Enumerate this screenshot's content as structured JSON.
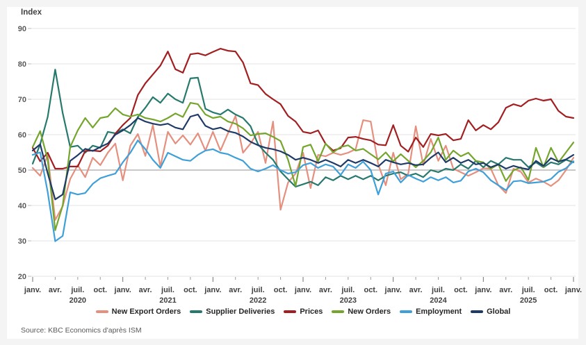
{
  "page": {
    "background": "#f4f4f4",
    "card_background": "#ffffff"
  },
  "header": {
    "axis_title": "Index"
  },
  "footer": {
    "source": "Source: KBC Economics d'après ISM"
  },
  "chart_data": {
    "type": "line",
    "title": "",
    "ylabel": "Index",
    "xlabel": "",
    "ylim": [
      20,
      90
    ],
    "yticks": [
      90,
      80,
      70,
      60,
      50,
      40,
      30,
      20
    ],
    "reference_line": 50,
    "grid": true,
    "grid_color": "#e3e3e3",
    "reference_line_color": "#a8a8a8",
    "x_start": "janv. 2020",
    "x_end": "janv. 2026",
    "points_per_series": 73,
    "quarter_tick_labels": [
      "janv.",
      "avr.",
      "juil.",
      "oct.",
      "janv.",
      "avr.",
      "juil.",
      "oct.",
      "janv.",
      "avr.",
      "juil.",
      "oct.",
      "janv.",
      "avr.",
      "juil.",
      "oct.",
      "janv.",
      "avr.",
      "juil.",
      "oct.",
      "janv.",
      "avr.",
      "juil.",
      "oct.",
      "janv."
    ],
    "year_labels": [
      {
        "label": "2020",
        "month_index": 6
      },
      {
        "label": "2021",
        "month_index": 18
      },
      {
        "label": "2022",
        "month_index": 30
      },
      {
        "label": "2023",
        "month_index": 42
      },
      {
        "label": "2024",
        "month_index": 54
      },
      {
        "label": "2025",
        "month_index": 66
      }
    ],
    "legend_position": "bottom",
    "series": [
      {
        "name": "New Export Orders",
        "color": "#E58F7E",
        "values": [
          50.6,
          48.4,
          54.3,
          35.9,
          39.8,
          47.5,
          51.4,
          48.0,
          53.5,
          51.4,
          54.9,
          57.5,
          47.1,
          56.9,
          60.2,
          54.0,
          62.7,
          51.0,
          60.8,
          57.5,
          59.8,
          57.2,
          60.4,
          55.5,
          60.8,
          55.5,
          60.4,
          65.3,
          54.9,
          57.5,
          60.8,
          52.0,
          63.7,
          38.8,
          46.5,
          49.0,
          54.9,
          44.9,
          54.3,
          53.9,
          54.9,
          54.3,
          54.9,
          55.9,
          64.1,
          63.7,
          51.6,
          45.7,
          54.9,
          47.4,
          49.0,
          62.4,
          51.4,
          58.8,
          52.6,
          56.9,
          50.4,
          49.4,
          48.4,
          49.4,
          50.5,
          50.4,
          45.7,
          43.5,
          50.4,
          49.5,
          46.5,
          47.6,
          46.7,
          45.5,
          47.1,
          50.0,
          53.5
        ]
      },
      {
        "name": "Supplier Deliveries",
        "color": "#27796D",
        "values": [
          51.8,
          57.3,
          65.0,
          78.4,
          66.1,
          56.5,
          56.9,
          54.9,
          56.9,
          56.3,
          60.8,
          60.4,
          61.5,
          60.4,
          65.0,
          67.6,
          70.6,
          69.0,
          71.6,
          70.0,
          69.0,
          75.9,
          76.1,
          67.3,
          66.3,
          65.7,
          67.1,
          65.7,
          64.7,
          62.4,
          57.3,
          54.9,
          52.9,
          49.6,
          47.4,
          45.3,
          46.0,
          46.7,
          45.7,
          48.0,
          47.1,
          48.4,
          47.4,
          48.4,
          47.4,
          48.4,
          47.1,
          48.4,
          49.0,
          49.4,
          48.4,
          49.0,
          48.0,
          50.0,
          49.4,
          50.4,
          50.0,
          51.6,
          50.4,
          52.6,
          50.8,
          52.6,
          51.6,
          53.5,
          52.9,
          52.9,
          50.8,
          52.2,
          50.8,
          52.2,
          51.6,
          52.9,
          52.2
        ]
      },
      {
        "name": "Prices",
        "color": "#A11E21",
        "values": [
          56.3,
          52.5,
          54.9,
          50.4,
          50.4,
          51.0,
          51.0,
          55.4,
          55.5,
          55.3,
          56.9,
          60.3,
          62.7,
          64.7,
          71.2,
          74.5,
          77.0,
          79.5,
          83.5,
          78.5,
          77.5,
          82.7,
          83.0,
          82.4,
          83.4,
          84.3,
          83.7,
          83.5,
          80.4,
          74.5,
          74.0,
          71.5,
          70.0,
          68.6,
          65.3,
          63.7,
          60.8,
          60.4,
          61.2,
          57.4,
          55.5,
          56.2,
          59.2,
          59.4,
          58.8,
          58.4,
          57.2,
          57.0,
          62.7,
          56.9,
          55.2,
          59.2,
          56.5,
          60.2,
          59.8,
          60.2,
          58.4,
          58.8,
          64.1,
          61.2,
          62.7,
          61.5,
          63.5,
          67.6,
          68.6,
          68.0,
          69.6,
          70.2,
          69.6,
          70.0,
          66.7,
          65.1,
          64.7
        ]
      },
      {
        "name": "New Orders",
        "color": "#74A52D",
        "values": [
          56.5,
          61.0,
          53.0,
          33.0,
          40.0,
          56.5,
          61.2,
          64.7,
          62.0,
          64.7,
          65.1,
          67.5,
          65.7,
          65.1,
          65.7,
          64.7,
          64.3,
          63.7,
          64.7,
          66.0,
          65.0,
          69.0,
          68.6,
          65.7,
          64.7,
          65.1,
          63.7,
          63.1,
          61.8,
          59.8,
          60.2,
          60.4,
          59.4,
          58.2,
          52.9,
          45.5,
          56.5,
          57.2,
          52.5,
          57.5,
          55.0,
          56.5,
          57.0,
          55.5,
          56.0,
          54.5,
          53.0,
          55.0,
          52.5,
          54.5,
          52.6,
          50.8,
          52.6,
          55.0,
          59.2,
          52.9,
          55.5,
          53.9,
          54.9,
          52.6,
          52.2,
          50.4,
          51.6,
          46.9,
          49.9,
          50.8,
          47.2,
          56.3,
          50.8,
          56.3,
          52.2,
          55.0,
          57.8
        ]
      },
      {
        "name": "Employment",
        "color": "#3F9FD8",
        "values": [
          54.3,
          55.0,
          43.8,
          29.9,
          31.4,
          43.7,
          43.1,
          43.5,
          46.1,
          47.7,
          48.4,
          49.0,
          52.2,
          54.9,
          58.4,
          55.9,
          52.9,
          50.6,
          54.9,
          53.9,
          52.9,
          52.6,
          54.3,
          55.5,
          55.9,
          54.9,
          54.5,
          53.5,
          52.6,
          50.4,
          49.6,
          50.4,
          51.4,
          50.0,
          49.0,
          49.4,
          51.4,
          52.0,
          50.6,
          51.6,
          51.0,
          48.6,
          51.6,
          50.6,
          52.4,
          50.0,
          43.1,
          49.0,
          49.6,
          46.5,
          48.6,
          47.6,
          46.7,
          48.0,
          47.1,
          48.0,
          46.5,
          47.0,
          49.6,
          50.4,
          49.4,
          47.1,
          45.7,
          44.3,
          46.8,
          47.0,
          46.3,
          46.5,
          46.7,
          47.5,
          49.5,
          50.5,
          52.5
        ]
      },
      {
        "name": "Global",
        "color": "#1E3A66",
        "values": [
          55.5,
          57.3,
          49.1,
          41.7,
          43.1,
          52.6,
          54.2,
          56.0,
          55.4,
          56.5,
          57.5,
          60.0,
          61.2,
          62.7,
          64.7,
          63.7,
          63.1,
          62.7,
          63.1,
          62.0,
          61.5,
          65.1,
          65.7,
          62.5,
          61.5,
          62.0,
          61.0,
          60.5,
          59.5,
          58.0,
          57.0,
          56.3,
          55.9,
          55.3,
          54.3,
          52.9,
          53.5,
          52.9,
          52.0,
          52.9,
          52.0,
          51.0,
          52.9,
          52.0,
          52.9,
          52.0,
          51.0,
          52.9,
          52.2,
          51.6,
          52.0,
          51.4,
          51.6,
          53.5,
          55.0,
          52.2,
          53.5,
          52.0,
          52.9,
          51.6,
          52.0,
          50.8,
          51.6,
          50.4,
          51.2,
          50.6,
          50.2,
          52.6,
          51.2,
          53.4,
          52.4,
          53.0,
          54.3
        ]
      }
    ]
  }
}
